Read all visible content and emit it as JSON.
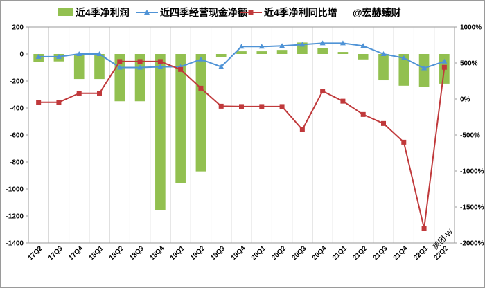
{
  "chart_data": {
    "type": "bar",
    "categories": [
      "17Q2",
      "17Q3",
      "17Q4",
      "18Q1",
      "18Q2",
      "18Q3",
      "18Q4",
      "19Q1",
      "19Q2",
      "19Q3",
      "19Q4",
      "20Q1",
      "20Q2",
      "20Q3",
      "20Q4",
      "21Q1",
      "21Q2",
      "21Q3",
      "21Q4",
      "22Q1",
      "22Q2"
    ],
    "series": [
      {
        "name": "近4季净利润",
        "type": "bar",
        "axis": "left",
        "color": "#92c050",
        "values": [
          -60,
          -55,
          -185,
          -185,
          -350,
          -350,
          -1155,
          -955,
          -870,
          -25,
          20,
          20,
          30,
          85,
          45,
          15,
          -40,
          -195,
          -235,
          -245,
          -220
        ]
      },
      {
        "name": "近四季经营现金净额",
        "type": "line",
        "axis": "left",
        "color": "#4f93d6",
        "marker": "triangle",
        "values": [
          -20,
          -20,
          0,
          0,
          -100,
          -100,
          -95,
          -95,
          -40,
          -95,
          55,
          55,
          60,
          70,
          80,
          80,
          60,
          0,
          -30,
          -105,
          -55
        ]
      },
      {
        "name": "近4季净利同比增",
        "type": "line",
        "axis": "right",
        "color": "#c0393b",
        "marker": "square",
        "values": [
          -45,
          -45,
          80,
          80,
          520,
          520,
          520,
          410,
          150,
          -100,
          -105,
          -105,
          -105,
          -425,
          110,
          -30,
          -215,
          -340,
          -600,
          -1795,
          440
        ]
      }
    ],
    "title": "",
    "legend": [
      "近4季净利润",
      "近四季经营现金净额",
      "近4季净利同比增",
      "@宏赫臻财"
    ],
    "legend_position": "top",
    "ylim": [
      -1400,
      200
    ],
    "yticks": [
      "200",
      "0",
      "-200",
      "-400",
      "-600",
      "-800",
      "-1000",
      "-1200",
      "-1400"
    ],
    "y2lim": [
      -2000,
      1000
    ],
    "y2ticks": [
      "1000%",
      "500%",
      "0%",
      "-500%",
      "-1000%",
      "-1500%",
      "-2000%"
    ],
    "grid": "vertical",
    "annotation": "美团-W"
  }
}
